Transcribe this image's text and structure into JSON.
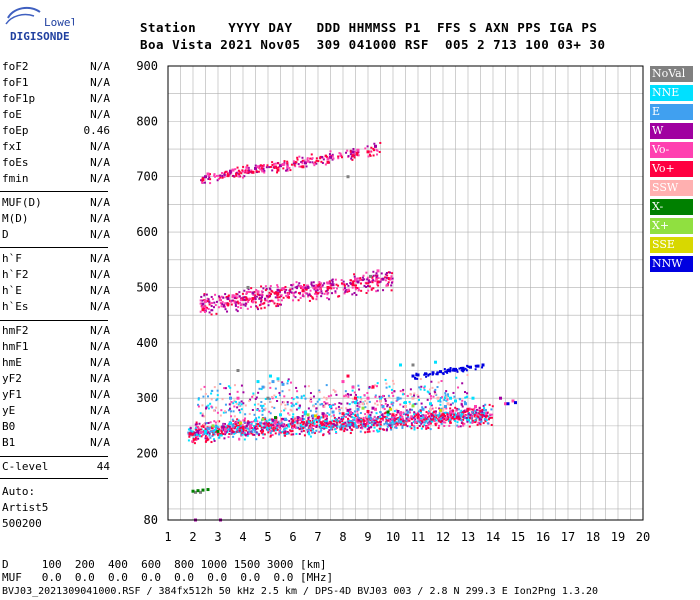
{
  "logo": {
    "line1": "Lowell",
    "line2": "DIGISONDE"
  },
  "header": {
    "row1": "Station    YYYY DAY   DDD HHMMSS P1  FFS S AXN PPS IGA PS",
    "row2": "Boa Vista 2021 Nov05  309 041000 RSF  005 2 713 100 03+ 30"
  },
  "params_group1": [
    {
      "name": "foF2",
      "value": "N/A"
    },
    {
      "name": "foF1",
      "value": "N/A"
    },
    {
      "name": "foF1p",
      "value": "N/A"
    },
    {
      "name": "foE",
      "value": "N/A"
    },
    {
      "name": "foEp",
      "value": "0.46"
    },
    {
      "name": "fxI",
      "value": "N/A"
    },
    {
      "name": "foEs",
      "value": "N/A"
    },
    {
      "name": "fmin",
      "value": "N/A"
    }
  ],
  "params_group2": [
    {
      "name": "MUF(D)",
      "value": "N/A"
    },
    {
      "name": "M(D)",
      "value": "N/A"
    },
    {
      "name": "D",
      "value": "N/A"
    }
  ],
  "params_group3": [
    {
      "name": "h`F",
      "value": "N/A"
    },
    {
      "name": "h`F2",
      "value": "N/A"
    },
    {
      "name": "h`E",
      "value": "N/A"
    },
    {
      "name": "h`Es",
      "value": "N/A"
    }
  ],
  "params_group4": [
    {
      "name": "hmF2",
      "value": "N/A"
    },
    {
      "name": "hmF1",
      "value": "N/A"
    },
    {
      "name": "hmE",
      "value": "N/A"
    },
    {
      "name": "yF2",
      "value": "N/A"
    },
    {
      "name": "yF1",
      "value": "N/A"
    },
    {
      "name": "yE",
      "value": "N/A"
    },
    {
      "name": "B0",
      "value": "N/A"
    },
    {
      "name": "B1",
      "value": "N/A"
    }
  ],
  "c_level": {
    "name": "C-level",
    "value": "44"
  },
  "auto": {
    "line1": "Auto:",
    "line2": "Artist5",
    "line3": "500200"
  },
  "legend": [
    {
      "label": "NoVal",
      "color": "#808080"
    },
    {
      "label": "NNE",
      "color": "#00e0ff"
    },
    {
      "label": "E",
      "color": "#40a0f0"
    },
    {
      "label": "W",
      "color": "#a000a0"
    },
    {
      "label": "Vo-",
      "color": "#ff40b0"
    },
    {
      "label": "Vo+",
      "color": "#ff0040"
    },
    {
      "label": "SSW",
      "color": "#ffb0b0"
    },
    {
      "label": "X-",
      "color": "#008000"
    },
    {
      "label": "X+",
      "color": "#90e040"
    },
    {
      "label": "SSE",
      "color": "#d8d800"
    },
    {
      "label": "NNW",
      "color": "#0000e0"
    }
  ],
  "footer": {
    "row1": "D     100  200  400  600  800 1000 1500 3000 [km]",
    "row2": "MUF   0.0  0.0  0.0  0.0  0.0  0.0  0.0  0.0 [MHz]",
    "row3": "BVJ03_2021309041000.RSF / 384fx512h 50 kHz 2.5 km / DPS-4D BVJ03 003 / 2.8 N 299.3 E Ion2Png 1.3.20"
  },
  "chart_data": {
    "type": "scatter",
    "xlim": [
      1,
      20
    ],
    "ylim": [
      80,
      900
    ],
    "x_ticks": [
      "1",
      "2",
      "3",
      "4",
      "5",
      "6",
      "7",
      "8",
      "9",
      "10",
      "11",
      "12",
      "13",
      "14",
      "15",
      "16",
      "17",
      "18",
      "19",
      "20"
    ],
    "y_ticks": [
      "80",
      "200",
      "300",
      "400",
      "500",
      "600",
      "700",
      "800",
      "900"
    ],
    "grid": true,
    "legend_placement": "right",
    "series": [
      {
        "name": "NoVal",
        "color": "#808080",
        "points": [
          [
            2.1,
            130
          ],
          [
            2.3,
            130
          ],
          [
            3.8,
            350
          ],
          [
            4.2,
            500
          ],
          [
            5.0,
            300
          ],
          [
            8.2,
            700
          ],
          [
            9.1,
            520
          ],
          [
            10.8,
            360
          ]
        ]
      },
      {
        "name": "NNE",
        "color": "#00e0ff",
        "points": [
          [
            2.5,
            240
          ],
          [
            3.5,
            255
          ],
          [
            4.5,
            260
          ],
          [
            5.5,
            270
          ],
          [
            6.5,
            275
          ],
          [
            7.5,
            285
          ],
          [
            8.5,
            292
          ],
          [
            9.5,
            298
          ],
          [
            10.5,
            292
          ],
          [
            11.5,
            290
          ],
          [
            12.5,
            295
          ],
          [
            13.2,
            300
          ],
          [
            4.6,
            330
          ],
          [
            5.1,
            340
          ],
          [
            5.4,
            335
          ],
          [
            10.3,
            360
          ],
          [
            11.7,
            365
          ],
          [
            12.3,
            300
          ],
          [
            9.8,
            270
          ]
        ]
      },
      {
        "name": "E",
        "color": "#40a0f0",
        "points": [
          [
            2.6,
            245
          ],
          [
            3.6,
            250
          ],
          [
            4.7,
            255
          ],
          [
            5.7,
            262
          ],
          [
            6.8,
            268
          ],
          [
            7.6,
            275
          ],
          [
            8.6,
            280
          ],
          [
            9.6,
            285
          ],
          [
            10.6,
            275
          ],
          [
            11.2,
            280
          ],
          [
            12.1,
            285
          ],
          [
            12.9,
            290
          ],
          [
            4.8,
            320
          ],
          [
            5.2,
            330
          ],
          [
            5.6,
            325
          ],
          [
            3.5,
            300
          ],
          [
            10.2,
            300
          ]
        ]
      },
      {
        "name": "W",
        "color": "#a000a0",
        "points": [
          [
            2.2,
            240
          ],
          [
            3.2,
            248
          ],
          [
            4.2,
            255
          ],
          [
            5.2,
            260
          ],
          [
            6.2,
            265
          ],
          [
            7.2,
            272
          ],
          [
            8.2,
            278
          ],
          [
            9.2,
            282
          ],
          [
            10.2,
            276
          ],
          [
            2.4,
            470
          ],
          [
            3.4,
            480
          ],
          [
            4.4,
            490
          ],
          [
            5.4,
            495
          ],
          [
            6.6,
            500
          ],
          [
            7.6,
            505
          ],
          [
            8.6,
            510
          ],
          [
            9.6,
            515
          ],
          [
            2.5,
            700
          ],
          [
            3.5,
            710
          ],
          [
            4.5,
            715
          ],
          [
            5.5,
            720
          ],
          [
            6.5,
            725
          ],
          [
            7.5,
            735
          ],
          [
            8.4,
            745
          ],
          [
            9.3,
            755
          ],
          [
            2.1,
            80
          ],
          [
            3.1,
            80
          ],
          [
            14.3,
            300
          ]
        ]
      },
      {
        "name": "Vo-",
        "color": "#ff40b0",
        "points": [
          [
            2.3,
            238
          ],
          [
            3.3,
            243
          ],
          [
            4.3,
            250
          ],
          [
            5.3,
            256
          ],
          [
            6.3,
            262
          ],
          [
            7.3,
            268
          ],
          [
            8.3,
            274
          ],
          [
            9.3,
            280
          ],
          [
            10.3,
            272
          ],
          [
            11.3,
            268
          ],
          [
            12.3,
            275
          ],
          [
            13.3,
            285
          ],
          [
            14.5,
            290
          ],
          [
            14.8,
            295
          ],
          [
            2.5,
            475
          ],
          [
            3.6,
            485
          ],
          [
            4.6,
            492
          ],
          [
            5.6,
            498
          ],
          [
            6.4,
            500
          ],
          [
            7.4,
            508
          ],
          [
            8.5,
            515
          ],
          [
            9.4,
            530
          ],
          [
            2.6,
            705
          ],
          [
            3.6,
            712
          ],
          [
            4.6,
            718
          ],
          [
            5.6,
            722
          ],
          [
            6.6,
            728
          ],
          [
            7.4,
            732
          ],
          [
            8.6,
            748
          ],
          [
            8.0,
            330
          ],
          [
            8.4,
            320
          ],
          [
            9.0,
            300
          ],
          [
            3.8,
            300
          ]
        ]
      },
      {
        "name": "Vo+",
        "color": "#ff0040",
        "points": [
          [
            2.0,
            235
          ],
          [
            3.0,
            240
          ],
          [
            4.0,
            247
          ],
          [
            5.0,
            253
          ],
          [
            6.0,
            259
          ],
          [
            7.0,
            265
          ],
          [
            8.0,
            272
          ],
          [
            9.0,
            276
          ],
          [
            10.0,
            270
          ],
          [
            11.0,
            266
          ],
          [
            12.0,
            270
          ],
          [
            13.0,
            280
          ],
          [
            2.4,
            460
          ],
          [
            3.4,
            470
          ],
          [
            4.4,
            480
          ],
          [
            5.4,
            488
          ],
          [
            6.4,
            494
          ],
          [
            7.4,
            500
          ],
          [
            8.4,
            505
          ],
          [
            9.4,
            510
          ],
          [
            2.4,
            695
          ],
          [
            3.4,
            702
          ],
          [
            4.4,
            708
          ],
          [
            5.4,
            712
          ],
          [
            6.4,
            718
          ],
          [
            7.4,
            726
          ],
          [
            8.4,
            738
          ],
          [
            9.0,
            745
          ],
          [
            8.2,
            340
          ],
          [
            8.5,
            300
          ],
          [
            9.2,
            320
          ]
        ]
      },
      {
        "name": "SSW",
        "color": "#ffb0b0",
        "points": [
          [
            8.8,
            290
          ],
          [
            9.5,
            295
          ],
          [
            10.5,
            285
          ],
          [
            11.5,
            280
          ],
          [
            11.8,
            300
          ],
          [
            12.2,
            290
          ],
          [
            10.8,
            300
          ]
        ]
      },
      {
        "name": "X-",
        "color": "#008000",
        "points": [
          [
            2.0,
            132
          ],
          [
            2.2,
            133
          ],
          [
            2.4,
            134
          ],
          [
            2.6,
            135
          ],
          [
            3.0,
            240
          ],
          [
            5.3,
            265
          ],
          [
            9.8,
            275
          ]
        ]
      },
      {
        "name": "X+",
        "color": "#90e040",
        "points": [
          [
            2.8,
            250
          ],
          [
            4.8,
            262
          ],
          [
            6.6,
            270
          ],
          [
            8.8,
            282
          ],
          [
            10.8,
            286
          ]
        ]
      },
      {
        "name": "SSE",
        "color": "#d8d800",
        "points": [
          [
            3.9,
            255
          ],
          [
            6.9,
            268
          ],
          [
            9.9,
            280
          ],
          [
            11.9,
            278
          ]
        ]
      },
      {
        "name": "NNW",
        "color": "#0000e0",
        "points": [
          [
            10.8,
            340
          ],
          [
            11.0,
            342
          ],
          [
            11.3,
            344
          ],
          [
            11.6,
            346
          ],
          [
            11.9,
            348
          ],
          [
            12.2,
            350
          ],
          [
            12.5,
            352
          ],
          [
            12.8,
            354
          ],
          [
            13.1,
            356
          ],
          [
            13.4,
            358
          ],
          [
            13.6,
            360
          ],
          [
            14.6,
            290
          ],
          [
            14.9,
            292
          ]
        ]
      }
    ],
    "traces": [
      {
        "name": "F-layer 1st hop",
        "x0": 1.8,
        "y0": 238,
        "x1": 14.0,
        "y1": 270,
        "spread": 16,
        "n": 1600,
        "colors": [
          "#ff0040",
          "#ff40b0",
          "#a000a0",
          "#ff0040",
          "#40a0f0",
          "#00e0ff"
        ]
      },
      {
        "name": "Upper spread F",
        "x0": 2.2,
        "y0": 285,
        "x1": 13.0,
        "y1": 300,
        "spread": 35,
        "n": 500,
        "colors": [
          "#00e0ff",
          "#40a0f0",
          "#ffb0b0",
          "#a000a0",
          "#ff40b0"
        ]
      },
      {
        "name": "2nd hop",
        "x0": 2.3,
        "y0": 468,
        "x1": 10.0,
        "y1": 515,
        "spread": 18,
        "n": 550,
        "colors": [
          "#ff0040",
          "#a000a0",
          "#ff40b0"
        ]
      },
      {
        "name": "3rd hop",
        "x0": 2.3,
        "y0": 695,
        "x1": 9.5,
        "y1": 750,
        "spread": 10,
        "n": 260,
        "colors": [
          "#ff0040",
          "#a000a0",
          "#ff40b0"
        ]
      },
      {
        "name": "Blue trace",
        "x0": 10.8,
        "y0": 338,
        "x1": 13.6,
        "y1": 358,
        "spread": 5,
        "n": 60,
        "colors": [
          "#0000e0"
        ]
      }
    ]
  }
}
